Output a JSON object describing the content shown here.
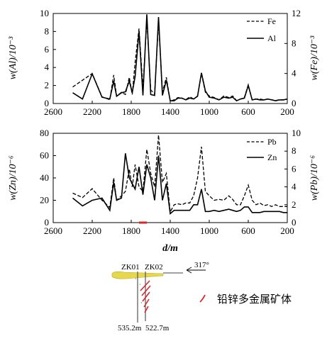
{
  "chart_data": [
    {
      "type": "line",
      "xlabel": "",
      "ylabel_left": "w(Al)/10⁻³",
      "ylabel_right": "w(Fe)/10⁻³",
      "xlim": [
        2600,
        200
      ],
      "ylim_left": [
        0,
        10
      ],
      "ylim_right": [
        0,
        12
      ],
      "x_ticks": [
        "2600",
        "2200",
        "1800",
        "1400",
        "1000",
        "600",
        "200"
      ],
      "y_left_ticks": [
        "0",
        "2",
        "4",
        "6",
        "8",
        "10"
      ],
      "y_right_ticks": [
        "0",
        "4",
        "8",
        "12"
      ],
      "legend_position": "top-right",
      "series": [
        {
          "name": "Fe",
          "axis": "right",
          "style": "dashed",
          "x": [
            2400,
            2200,
            2100,
            2020,
            1980,
            1950,
            1900,
            1860,
            1820,
            1790,
            1760,
            1720,
            1680,
            1640,
            1600,
            1560,
            1520,
            1480,
            1440,
            1400,
            1360,
            1320,
            1280,
            1240,
            1200,
            1160,
            1120,
            1080,
            1040,
            1000,
            950,
            900,
            850,
            800,
            760,
            720,
            680,
            640,
            600,
            560,
            520,
            480,
            440,
            400,
            360,
            320,
            280,
            240,
            200
          ],
          "y": [
            2.2,
            4.0,
            0.9,
            0.5,
            3.8,
            1.0,
            1.5,
            1.2,
            3.5,
            1.2,
            5.5,
            10.0,
            2.0,
            11.2,
            1.8,
            1.3,
            11.0,
            1.5,
            3.5,
            0.3,
            0.5,
            0.8,
            0.7,
            0.5,
            0.9,
            0.6,
            1.0,
            4.0,
            1.5,
            1.0,
            0.8,
            0.5,
            1.0,
            0.8,
            1.0,
            0.4,
            0.6,
            0.8,
            2.5,
            0.5,
            0.6,
            0.6,
            0.5,
            0.6,
            0.5,
            0.4,
            0.5,
            0.5,
            0.6
          ]
        },
        {
          "name": "Al",
          "axis": "left",
          "style": "solid",
          "x": [
            2400,
            2300,
            2200,
            2100,
            2020,
            1980,
            1950,
            1900,
            1860,
            1820,
            1790,
            1760,
            1720,
            1680,
            1640,
            1600,
            1560,
            1520,
            1480,
            1440,
            1400,
            1360,
            1320,
            1280,
            1240,
            1200,
            1160,
            1120,
            1080,
            1040,
            1000,
            950,
            900,
            850,
            800,
            760,
            720,
            680,
            640,
            600,
            560,
            520,
            480,
            440,
            400,
            360,
            320,
            280,
            240,
            200
          ],
          "y": [
            1.2,
            0.5,
            3.3,
            0.7,
            0.5,
            2.5,
            0.8,
            1.2,
            1.3,
            2.5,
            1.2,
            3.0,
            8.0,
            0.9,
            9.9,
            1.0,
            0.9,
            9.6,
            0.9,
            2.6,
            0.3,
            0.3,
            0.6,
            0.6,
            0.4,
            0.6,
            0.5,
            0.8,
            3.4,
            1.4,
            0.7,
            0.6,
            0.4,
            0.7,
            0.6,
            0.7,
            0.3,
            0.5,
            0.6,
            2.0,
            0.4,
            0.5,
            0.4,
            0.4,
            0.5,
            0.4,
            0.3,
            0.4,
            0.4,
            0.5
          ]
        }
      ]
    },
    {
      "type": "line",
      "xlabel": "d/m",
      "ylabel_left": "w(Zn)/10⁻⁶",
      "ylabel_right": "w(Pb)/10⁻⁶",
      "xlim": [
        2600,
        200
      ],
      "ylim_left": [
        0,
        80
      ],
      "ylim_right": [
        0,
        10
      ],
      "x_ticks": [
        "2600",
        "2200",
        "1800",
        "1400",
        "1000",
        "600",
        "200"
      ],
      "y_left_ticks": [
        "0",
        "20",
        "40",
        "60",
        "80"
      ],
      "y_right_ticks": [
        "0",
        "2",
        "4",
        "6",
        "8",
        "10"
      ],
      "legend_position": "top-right",
      "series": [
        {
          "name": "Pb",
          "axis": "right",
          "style": "dashed",
          "x": [
            2400,
            2300,
            2200,
            2100,
            2020,
            1980,
            1950,
            1900,
            1860,
            1820,
            1790,
            1760,
            1720,
            1680,
            1640,
            1600,
            1560,
            1520,
            1480,
            1440,
            1400,
            1360,
            1320,
            1280,
            1240,
            1200,
            1160,
            1120,
            1080,
            1040,
            1000,
            950,
            900,
            850,
            800,
            760,
            720,
            680,
            640,
            600,
            560,
            520,
            480,
            440,
            400,
            360,
            320,
            280,
            240,
            200
          ],
          "y": [
            3.3,
            2.8,
            3.8,
            2.5,
            1.7,
            5.0,
            2.5,
            3.0,
            3.5,
            6.0,
            4.0,
            6.5,
            4.0,
            3.5,
            8.2,
            5.5,
            4.0,
            9.8,
            4.5,
            5.5,
            1.2,
            2.0,
            2.1,
            2.0,
            2.2,
            2.2,
            3.0,
            5.0,
            8.5,
            3.5,
            3.0,
            2.5,
            2.6,
            2.5,
            3.0,
            2.6,
            2.0,
            2.0,
            3.0,
            4.2,
            2.5,
            2.0,
            2.2,
            1.9,
            2.0,
            1.8,
            2.0,
            1.8,
            1.8,
            1.8
          ]
        },
        {
          "name": "Zn",
          "axis": "left",
          "style": "solid",
          "x": [
            2400,
            2300,
            2200,
            2100,
            2020,
            1980,
            1950,
            1900,
            1860,
            1820,
            1790,
            1760,
            1720,
            1680,
            1640,
            1600,
            1560,
            1520,
            1480,
            1440,
            1400,
            1360,
            1320,
            1280,
            1240,
            1200,
            1160,
            1120,
            1080,
            1040,
            1000,
            950,
            900,
            850,
            800,
            760,
            720,
            680,
            640,
            600,
            560,
            520,
            480,
            440,
            400,
            360,
            320,
            280,
            240,
            200
          ],
          "y": [
            22,
            15,
            20,
            22,
            11,
            36,
            20,
            22,
            62,
            40,
            35,
            30,
            50,
            25,
            52,
            40,
            20,
            60,
            20,
            35,
            8,
            11,
            11,
            11,
            11,
            11,
            16,
            16,
            30,
            10,
            10,
            11,
            10,
            11,
            12,
            11,
            10,
            11,
            14,
            14,
            9,
            9,
            9,
            10,
            10,
            10,
            10,
            10,
            9,
            9
          ]
        }
      ]
    }
  ],
  "section": {
    "drill_left": "ZK01",
    "drill_right": "ZK02",
    "depth_left": "535.2m",
    "depth_right": "522.7m",
    "azimuth": "317°",
    "legend_label": "铅锌多金属矿体",
    "ore_color": "#d9262d",
    "surface_color": "#e6d84a"
  }
}
